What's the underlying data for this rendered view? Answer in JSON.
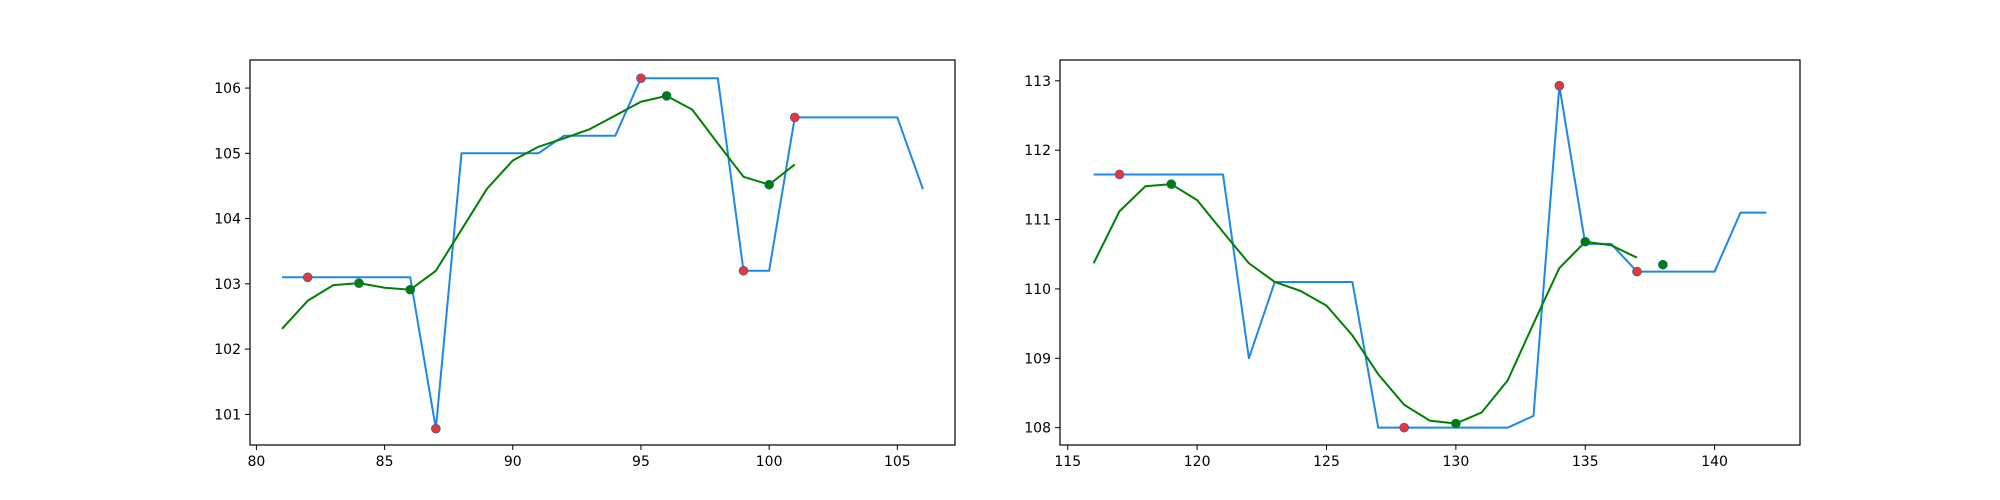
{
  "chart_data": [
    {
      "type": "line",
      "title": "",
      "xlabel": "",
      "ylabel": "",
      "xlim": [
        79.75,
        107.25
      ],
      "ylim": [
        100.53,
        106.43
      ],
      "xticks": [
        80,
        85,
        90,
        95,
        100,
        105
      ],
      "yticks": [
        101,
        102,
        103,
        104,
        105,
        106
      ],
      "grid": false,
      "series": [
        {
          "kind": "line",
          "color": "#1e88e5",
          "x": [
            81,
            82,
            83,
            84,
            85,
            86,
            87,
            88,
            89,
            90,
            91,
            92,
            93,
            94,
            95,
            96,
            97,
            98,
            99,
            100,
            101,
            102,
            103,
            104,
            105,
            106
          ],
          "y": [
            103.1,
            103.1,
            103.1,
            103.1,
            103.1,
            103.1,
            100.78,
            105.0,
            105.0,
            105.0,
            105.0,
            105.27,
            105.27,
            105.27,
            106.15,
            106.15,
            106.15,
            106.15,
            103.2,
            103.2,
            105.55,
            105.55,
            105.55,
            105.55,
            105.55,
            104.45
          ]
        },
        {
          "kind": "line",
          "color": "#008000",
          "x": [
            81,
            82,
            83,
            84,
            85,
            86,
            87,
            88,
            89,
            90,
            91,
            92,
            93,
            94,
            95,
            96,
            97,
            98,
            99,
            100,
            101
          ],
          "y": [
            102.31,
            102.74,
            102.98,
            103.01,
            102.94,
            102.91,
            103.2,
            103.83,
            104.46,
            104.89,
            105.1,
            105.23,
            105.37,
            105.58,
            105.79,
            105.88,
            105.67,
            105.15,
            104.64,
            104.52,
            104.83
          ]
        },
        {
          "kind": "scatter",
          "color": "#e53935",
          "x": [
            82,
            87,
            95,
            99,
            101
          ],
          "y": [
            103.1,
            100.78,
            106.15,
            103.2,
            105.55
          ]
        },
        {
          "kind": "scatter",
          "color": "#008000",
          "x": [
            84,
            86,
            96,
            100
          ],
          "y": [
            103.01,
            102.91,
            105.88,
            104.52
          ]
        }
      ]
    },
    {
      "type": "line",
      "title": "",
      "xlabel": "",
      "ylabel": "",
      "xlim": [
        114.7,
        143.3
      ],
      "ylim": [
        107.75,
        113.3
      ],
      "xticks": [
        115,
        120,
        125,
        130,
        135,
        140
      ],
      "yticks": [
        108,
        109,
        110,
        111,
        112,
        113
      ],
      "grid": false,
      "series": [
        {
          "kind": "line",
          "color": "#1e88e5",
          "x": [
            116,
            117,
            118,
            119,
            120,
            121,
            122,
            123,
            124,
            125,
            126,
            127,
            128,
            129,
            130,
            131,
            132,
            133,
            134,
            135,
            136,
            137,
            138,
            139,
            140,
            141,
            142
          ],
          "y": [
            111.65,
            111.65,
            111.65,
            111.65,
            111.65,
            111.65,
            109.0,
            110.1,
            110.1,
            110.1,
            110.1,
            108.0,
            108.0,
            108.0,
            108.0,
            108.0,
            108.0,
            108.17,
            112.93,
            110.65,
            110.65,
            110.25,
            110.25,
            110.25,
            110.25,
            111.1,
            111.1
          ]
        },
        {
          "kind": "line",
          "color": "#008000",
          "x": [
            116,
            117,
            118,
            119,
            120,
            121,
            122,
            123,
            124,
            125,
            126,
            127,
            128,
            129,
            130,
            131,
            132,
            133,
            134,
            135,
            136,
            137
          ],
          "y": [
            110.37,
            111.12,
            111.48,
            111.51,
            111.28,
            110.82,
            110.37,
            110.1,
            109.97,
            109.76,
            109.33,
            108.77,
            108.33,
            108.1,
            108.06,
            108.22,
            108.68,
            109.5,
            110.3,
            110.68,
            110.63,
            110.45
          ]
        },
        {
          "kind": "scatter",
          "color": "#e53935",
          "x": [
            117,
            128,
            134,
            137
          ],
          "y": [
            111.65,
            108.0,
            112.93,
            110.25
          ]
        },
        {
          "kind": "scatter",
          "color": "#008000",
          "x": [
            119,
            130,
            135,
            138
          ],
          "y": [
            111.51,
            108.06,
            110.68,
            110.35
          ]
        }
      ]
    }
  ]
}
